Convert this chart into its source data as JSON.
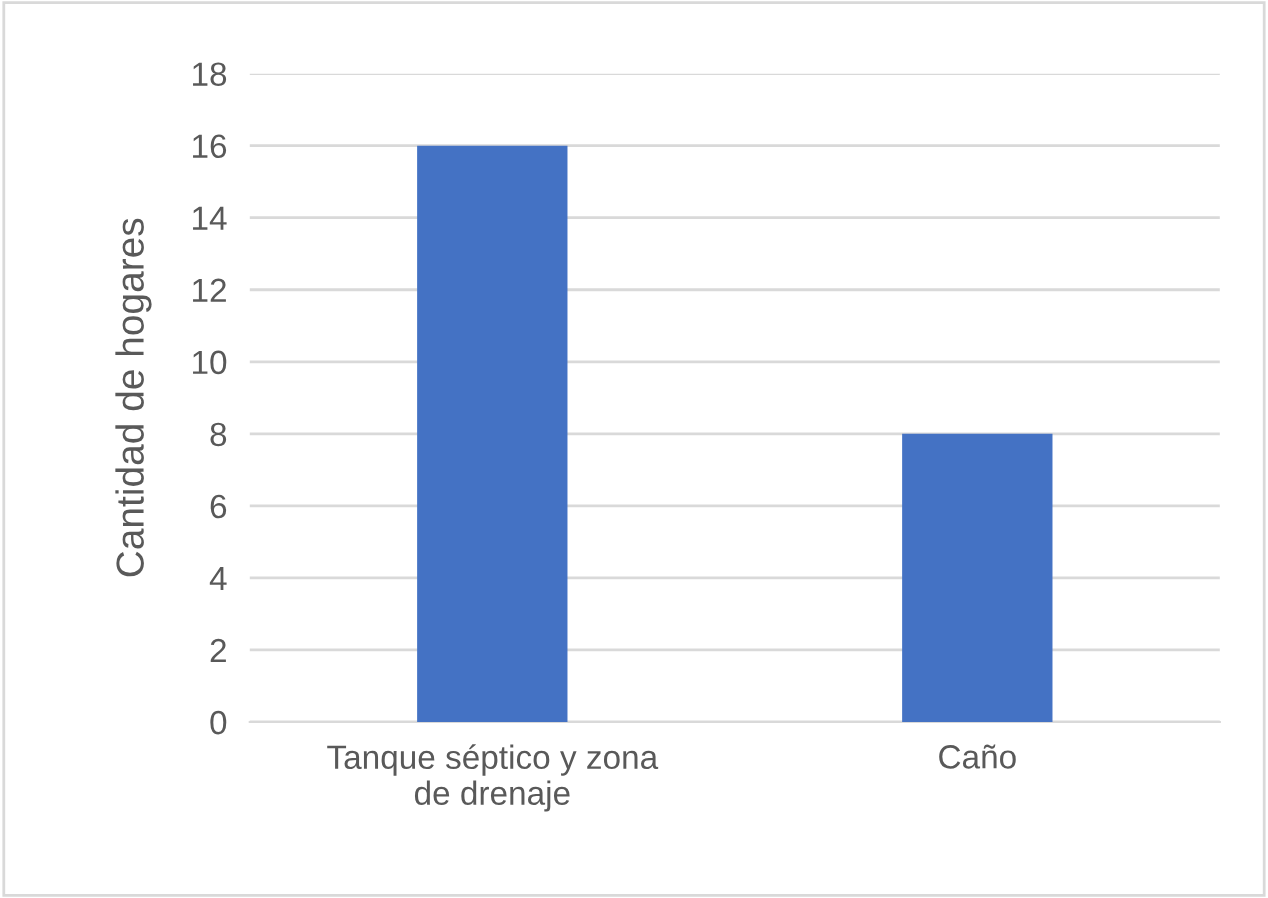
{
  "chart_data": {
    "type": "bar",
    "ylabel": "Cantidad de hogares",
    "categories": [
      "Tanque séptico y zona\nde drenaje",
      "Caño"
    ],
    "values": [
      16,
      8
    ],
    "color": "#4472c4",
    "ylim": [
      0,
      18
    ],
    "yticks": [
      0,
      2,
      4,
      6,
      8,
      10,
      12,
      14,
      16,
      18
    ],
    "grid": "y"
  }
}
